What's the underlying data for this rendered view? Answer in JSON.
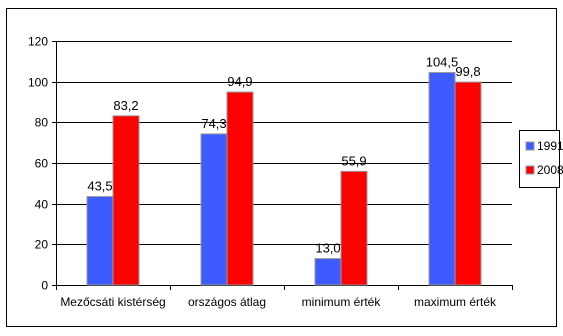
{
  "chart_data": {
    "type": "bar",
    "categories": [
      "Mezőcsáti kistérség",
      "országos átlag",
      "minimum érték",
      "maximum érték"
    ],
    "series": [
      {
        "name": "1991",
        "values": [
          43.5,
          74.3,
          13.0,
          104.5
        ],
        "labels": [
          "43,5",
          "74,3",
          "13,0",
          "104,5"
        ],
        "color": "#3d5bff"
      },
      {
        "name": "2008",
        "values": [
          83.2,
          94.9,
          55.9,
          99.8
        ],
        "labels": [
          "83,2",
          "94,9",
          "55,9",
          "99,8"
        ],
        "color": "#ff0000"
      }
    ],
    "ylim": [
      0,
      120
    ],
    "yticks": [
      0,
      20,
      40,
      60,
      80,
      100,
      120
    ],
    "grid": true,
    "legend_position": "right",
    "gridline_color": "#000000",
    "frame_color": "#000000"
  }
}
